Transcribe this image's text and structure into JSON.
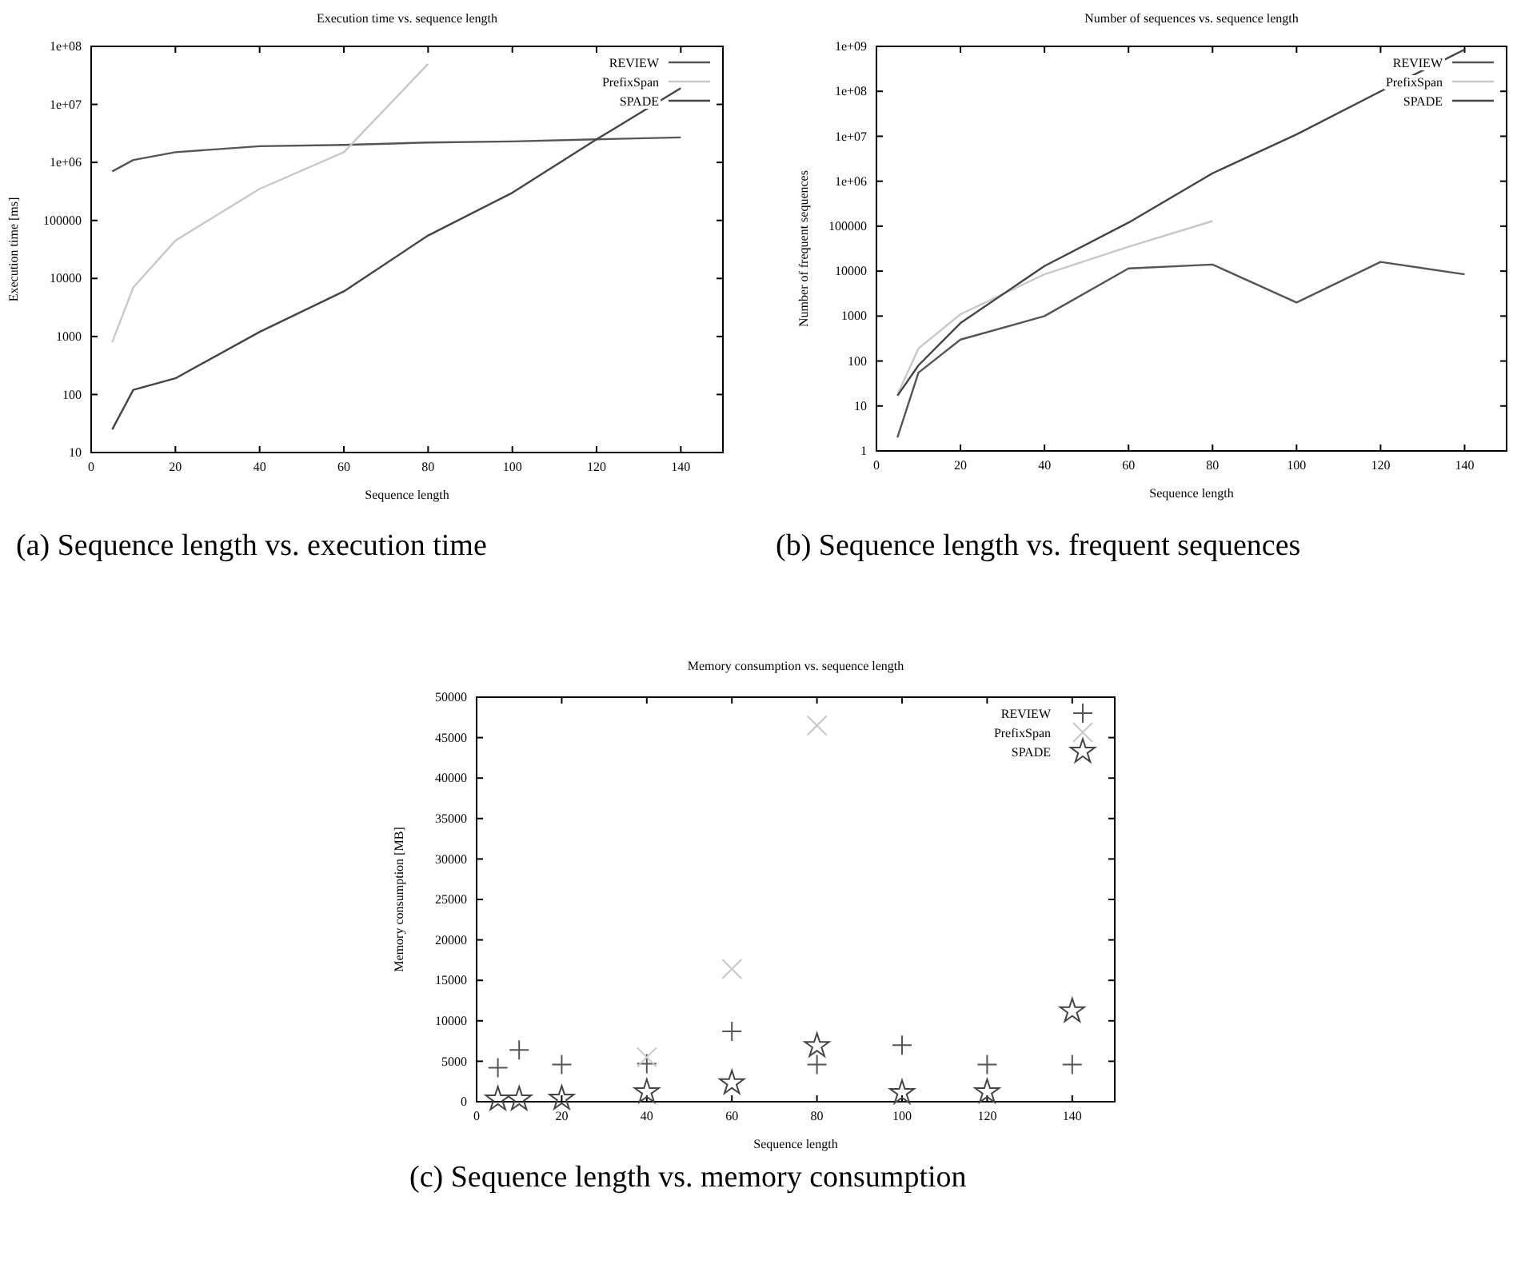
{
  "chart_data": [
    {
      "type": "line",
      "title": "Execution time vs. sequence length",
      "xlabel": "Sequence length",
      "ylabel": "Execution time [ms]",
      "log": "y",
      "legend": "top right",
      "grid": false,
      "xlim": [
        0,
        150
      ],
      "xticks": [
        0,
        20,
        40,
        60,
        80,
        100,
        120,
        140
      ],
      "ylim": [
        10,
        100000000
      ],
      "yticks": [
        10,
        100,
        1000,
        10000,
        100000,
        {
          "value": 1000000,
          "label": "1e+06"
        },
        {
          "value": 10000000,
          "label": "1e+07"
        },
        {
          "value": 100000000,
          "label": "1e+08"
        }
      ],
      "x": [
        5,
        10,
        20,
        40,
        60,
        80,
        100,
        120,
        140
      ],
      "series": [
        {
          "name": "REVIEW",
          "color": "#555555",
          "values": [
            700000,
            1100000,
            1500000,
            1900000,
            2000000,
            2200000,
            2300000,
            2500000,
            2700000
          ]
        },
        {
          "name": "PrefixSpan",
          "color": "#c8c8c8",
          "x": [
            5,
            10,
            20,
            40,
            60,
            80
          ],
          "values": [
            800,
            7000,
            45000,
            350000,
            1500000,
            50000000
          ]
        },
        {
          "name": "SPADE",
          "color": "#444444",
          "values": [
            25,
            120,
            190,
            1200,
            6000,
            55000,
            300000,
            2500000,
            19000000
          ]
        }
      ],
      "annotations": [
        "(a) Sequence length vs. execution time"
      ]
    },
    {
      "type": "line",
      "title": "Number of sequences vs. sequence length",
      "xlabel": "Sequence length",
      "ylabel": "Number of frequent sequences",
      "log": "y",
      "legend": "top right",
      "grid": false,
      "xlim": [
        0,
        150
      ],
      "xticks": [
        0,
        20,
        40,
        60,
        80,
        100,
        120,
        140
      ],
      "ylim": [
        1,
        1000000000
      ],
      "yticks": [
        1,
        10,
        100,
        1000,
        10000,
        100000,
        {
          "value": 1000000,
          "label": "1e+06"
        },
        {
          "value": 10000000,
          "label": "1e+07"
        },
        {
          "value": 100000000,
          "label": "1e+08"
        },
        {
          "value": 1000000000,
          "label": "1e+09"
        }
      ],
      "x": [
        5,
        10,
        20,
        40,
        60,
        80,
        100,
        120,
        140
      ],
      "series": [
        {
          "name": "REVIEW",
          "color": "#555555",
          "values": [
            2,
            55,
            300,
            1000,
            11500,
            14000,
            2000,
            16000,
            8500
          ]
        },
        {
          "name": "PrefixSpan",
          "color": "#c8c8c8",
          "x": [
            5,
            10,
            20,
            40,
            60,
            80
          ],
          "values": [
            18,
            190,
            1100,
            8500,
            35000,
            130000
          ]
        },
        {
          "name": "SPADE",
          "color": "#444444",
          "values": [
            17,
            80,
            700,
            13000,
            120000,
            1500000,
            11000000,
            100000000,
            850000000
          ]
        }
      ],
      "annotations": [
        "(b) Sequence length vs. frequent sequences"
      ]
    },
    {
      "type": "scatter",
      "title": "Memory consumption vs. sequence length",
      "xlabel": "Sequence length",
      "ylabel": "Memory consumption [MB]",
      "legend": "top right",
      "grid": false,
      "xlim": [
        0,
        150
      ],
      "xticks": [
        0,
        20,
        40,
        60,
        80,
        100,
        120,
        140
      ],
      "ylim": [
        0,
        50000
      ],
      "yticks": [
        0,
        5000,
        10000,
        15000,
        20000,
        25000,
        30000,
        35000,
        40000,
        45000,
        50000
      ],
      "x": [
        5,
        10,
        20,
        40,
        60,
        80,
        100,
        120,
        140
      ],
      "series": [
        {
          "name": "REVIEW",
          "color": "#555555",
          "marker": "cross",
          "values": [
            4200,
            6400,
            4600,
            4700,
            8700,
            4600,
            7000,
            4600,
            4600
          ]
        },
        {
          "name": "PrefixSpan",
          "color": "#c8c8c8",
          "marker": "x",
          "x": [
            40,
            60,
            80
          ],
          "values": [
            5500,
            16400,
            46500
          ]
        },
        {
          "name": "SPADE",
          "color": "#444444",
          "marker": "star",
          "values": [
            300,
            300,
            400,
            1200,
            2300,
            6900,
            1100,
            1200,
            11200
          ]
        }
      ],
      "annotations": [
        "(c) Sequence length vs. memory consumption"
      ]
    }
  ]
}
